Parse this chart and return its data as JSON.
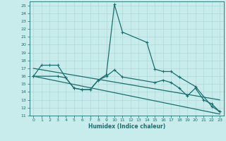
{
  "xlabel": "Humidex (Indice chaleur)",
  "background_color": "#c8ecec",
  "grid_color": "#b0d8d8",
  "line_color": "#1a6e6e",
  "xlim": [
    -0.5,
    23.5
  ],
  "ylim": [
    11,
    25.5
  ],
  "xticks": [
    0,
    1,
    2,
    3,
    4,
    5,
    6,
    7,
    8,
    9,
    10,
    11,
    12,
    13,
    14,
    15,
    16,
    17,
    18,
    19,
    20,
    21,
    22,
    23
  ],
  "yticks": [
    11,
    12,
    13,
    14,
    15,
    16,
    17,
    18,
    19,
    20,
    21,
    22,
    23,
    24,
    25
  ],
  "curve1_x": [
    0,
    1,
    2,
    3,
    4,
    5,
    6,
    7,
    8,
    9,
    10,
    11,
    14,
    15,
    16,
    17,
    18,
    20,
    22,
    23
  ],
  "curve1_y": [
    16.0,
    17.4,
    17.4,
    17.4,
    15.8,
    14.5,
    14.3,
    14.3,
    15.5,
    16.2,
    25.1,
    21.6,
    20.3,
    16.9,
    16.6,
    16.6,
    15.9,
    14.7,
    12.2,
    11.5
  ],
  "curve2_x": [
    0,
    3,
    4,
    5,
    6,
    7,
    8,
    9,
    10,
    11,
    15,
    16,
    17,
    18,
    19,
    20,
    21,
    22,
    23
  ],
  "curve2_y": [
    16.0,
    16.0,
    15.8,
    14.5,
    14.3,
    14.3,
    15.5,
    16.0,
    16.8,
    15.9,
    15.2,
    15.5,
    15.2,
    14.5,
    13.5,
    14.5,
    13.0,
    12.5,
    11.5
  ],
  "line3_x": [
    0,
    23
  ],
  "line3_y": [
    17.0,
    13.0
  ],
  "line4_x": [
    0,
    23
  ],
  "line4_y": [
    16.0,
    11.2
  ]
}
